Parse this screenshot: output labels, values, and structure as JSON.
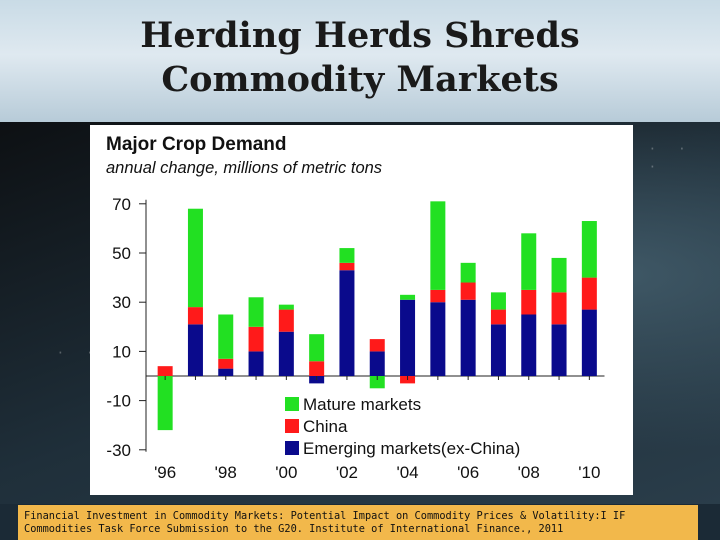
{
  "slide": {
    "title_line1": "Herding Herds Shreds",
    "title_line2": "Commodity Markets"
  },
  "footer": {
    "line1": "Financial Investment in Commodity Markets: Potential Impact on Commodity Prices & Volatility:I IF",
    "line2": "Commodities Task Force Submission to the G20. Institute of International Finance., 2011"
  },
  "colors": {
    "mature": "#22e022",
    "china": "#ff1a1a",
    "emerging": "#0a0a8c"
  },
  "chart_data": {
    "type": "bar",
    "stacked": true,
    "title": "Major Crop Demand",
    "subtitle": "annual change, millions of metric tons",
    "categories": [
      "1996",
      "1997",
      "1998",
      "1999",
      "2000",
      "2001",
      "2002",
      "2003",
      "2004",
      "2005",
      "2006",
      "2007",
      "2008",
      "2009",
      "2010"
    ],
    "x_tick_labels": [
      "'96",
      "'98",
      "'00",
      "'02",
      "'04",
      "'06",
      "'08",
      "'10"
    ],
    "y_ticks": [
      70,
      50,
      30,
      10,
      -10,
      -30
    ],
    "ylim": [
      -30,
      70
    ],
    "series": [
      {
        "name": "Emerging markets(ex-China)",
        "values": [
          0,
          21,
          3,
          10,
          18,
          -3,
          43,
          10,
          31,
          30,
          31,
          21,
          25,
          21,
          27
        ]
      },
      {
        "name": "China",
        "values": [
          4,
          7,
          4,
          10,
          9,
          6,
          3,
          5,
          -3,
          5,
          7,
          6,
          10,
          13,
          13
        ]
      },
      {
        "name": "Mature markets",
        "values": [
          -22,
          40,
          18,
          12,
          2,
          11,
          6,
          -5,
          2,
          36,
          8,
          7,
          23,
          14,
          23
        ]
      }
    ],
    "legend": {
      "position": "bottom-center",
      "entries": [
        "Mature markets",
        "China",
        "Emerging markets(ex-China)"
      ]
    },
    "grid": false
  }
}
